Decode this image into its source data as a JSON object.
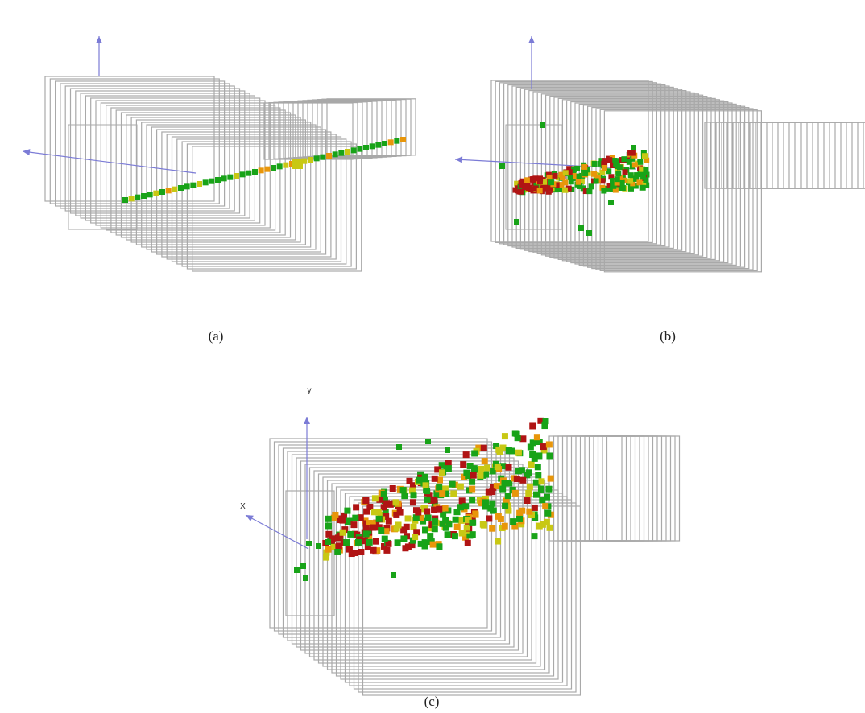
{
  "figure": {
    "captions": {
      "a": "(a)",
      "b": "(b)",
      "c": "(c)"
    },
    "axis_labels": {
      "y": "y",
      "x": "X"
    },
    "colors": {
      "frame": "#a9a9a9",
      "axis": "#7b7bd6",
      "green": "#18a318",
      "yellow": "#c8c814",
      "orange": "#e8960a",
      "red": "#b01414"
    },
    "icons": {
      "axis_arrow": "arrow-icon"
    }
  }
}
